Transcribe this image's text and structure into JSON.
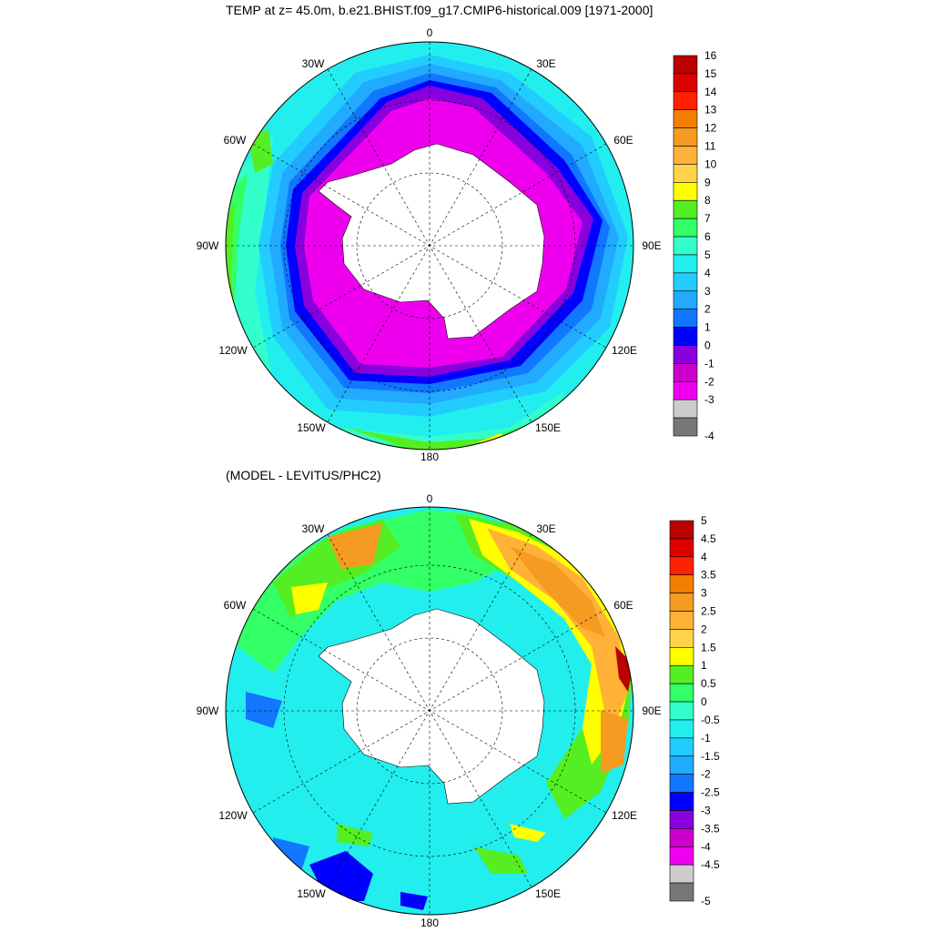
{
  "main_title": "TEMP at z=  45.0m, b.e21.BHIST.f09_g17.CMIP6-historical.009 [1971-2000]",
  "diff_title": "(MODEL - LEVITUS/PHC2)",
  "map_labels": {
    "lon_0": "0",
    "lon_30e": "30E",
    "lon_60e": "60E",
    "lon_90e": "90E",
    "lon_120e": "120E",
    "lon_150e": "150E",
    "lon_180": "180",
    "lon_150w": "150W",
    "lon_120w": "120W",
    "lon_90w": "90W",
    "lon_60w": "60W",
    "lon_30w": "30W"
  },
  "colorbars": [
    {
      "name": "temperature",
      "levels": [
        "16",
        "15",
        "14",
        "13",
        "12",
        "11",
        "10",
        "9",
        "8",
        "7",
        "6",
        "5",
        "4",
        "3",
        "2",
        "1",
        "0",
        "-1",
        "-2",
        "-3",
        "-4"
      ],
      "colors": [
        "#bb0000",
        "#dd0000",
        "#ff2200",
        "#f27f00",
        "#f59b22",
        "#ffb237",
        "#ffd34a",
        "#ffff00",
        "#55ee22",
        "#33ff66",
        "#33ffcc",
        "#22eeee",
        "#22ccff",
        "#22aaff",
        "#1177ff",
        "#0000ff",
        "#8800dd",
        "#cc00cc",
        "#ee00ee",
        "#cccccc",
        "#777777"
      ]
    },
    {
      "name": "difference",
      "levels": [
        "5",
        "4.5",
        "4",
        "3.5",
        "3",
        "2.5",
        "2",
        "1.5",
        "1",
        "0.5",
        "0",
        "-0.5",
        "-1",
        "-1.5",
        "-2",
        "-2.5",
        "-3",
        "-3.5",
        "-4",
        "-4.5",
        "-5"
      ],
      "colors": [
        "#bb0000",
        "#dd0000",
        "#ff2200",
        "#f27f00",
        "#f59b22",
        "#ffb237",
        "#ffd34a",
        "#ffff00",
        "#55ee22",
        "#33ff66",
        "#33ffcc",
        "#22eeee",
        "#22ccff",
        "#22aaff",
        "#1177ff",
        "#0000ff",
        "#8800dd",
        "#cc00cc",
        "#ee00ee",
        "#cccccc",
        "#777777"
      ]
    }
  ]
}
